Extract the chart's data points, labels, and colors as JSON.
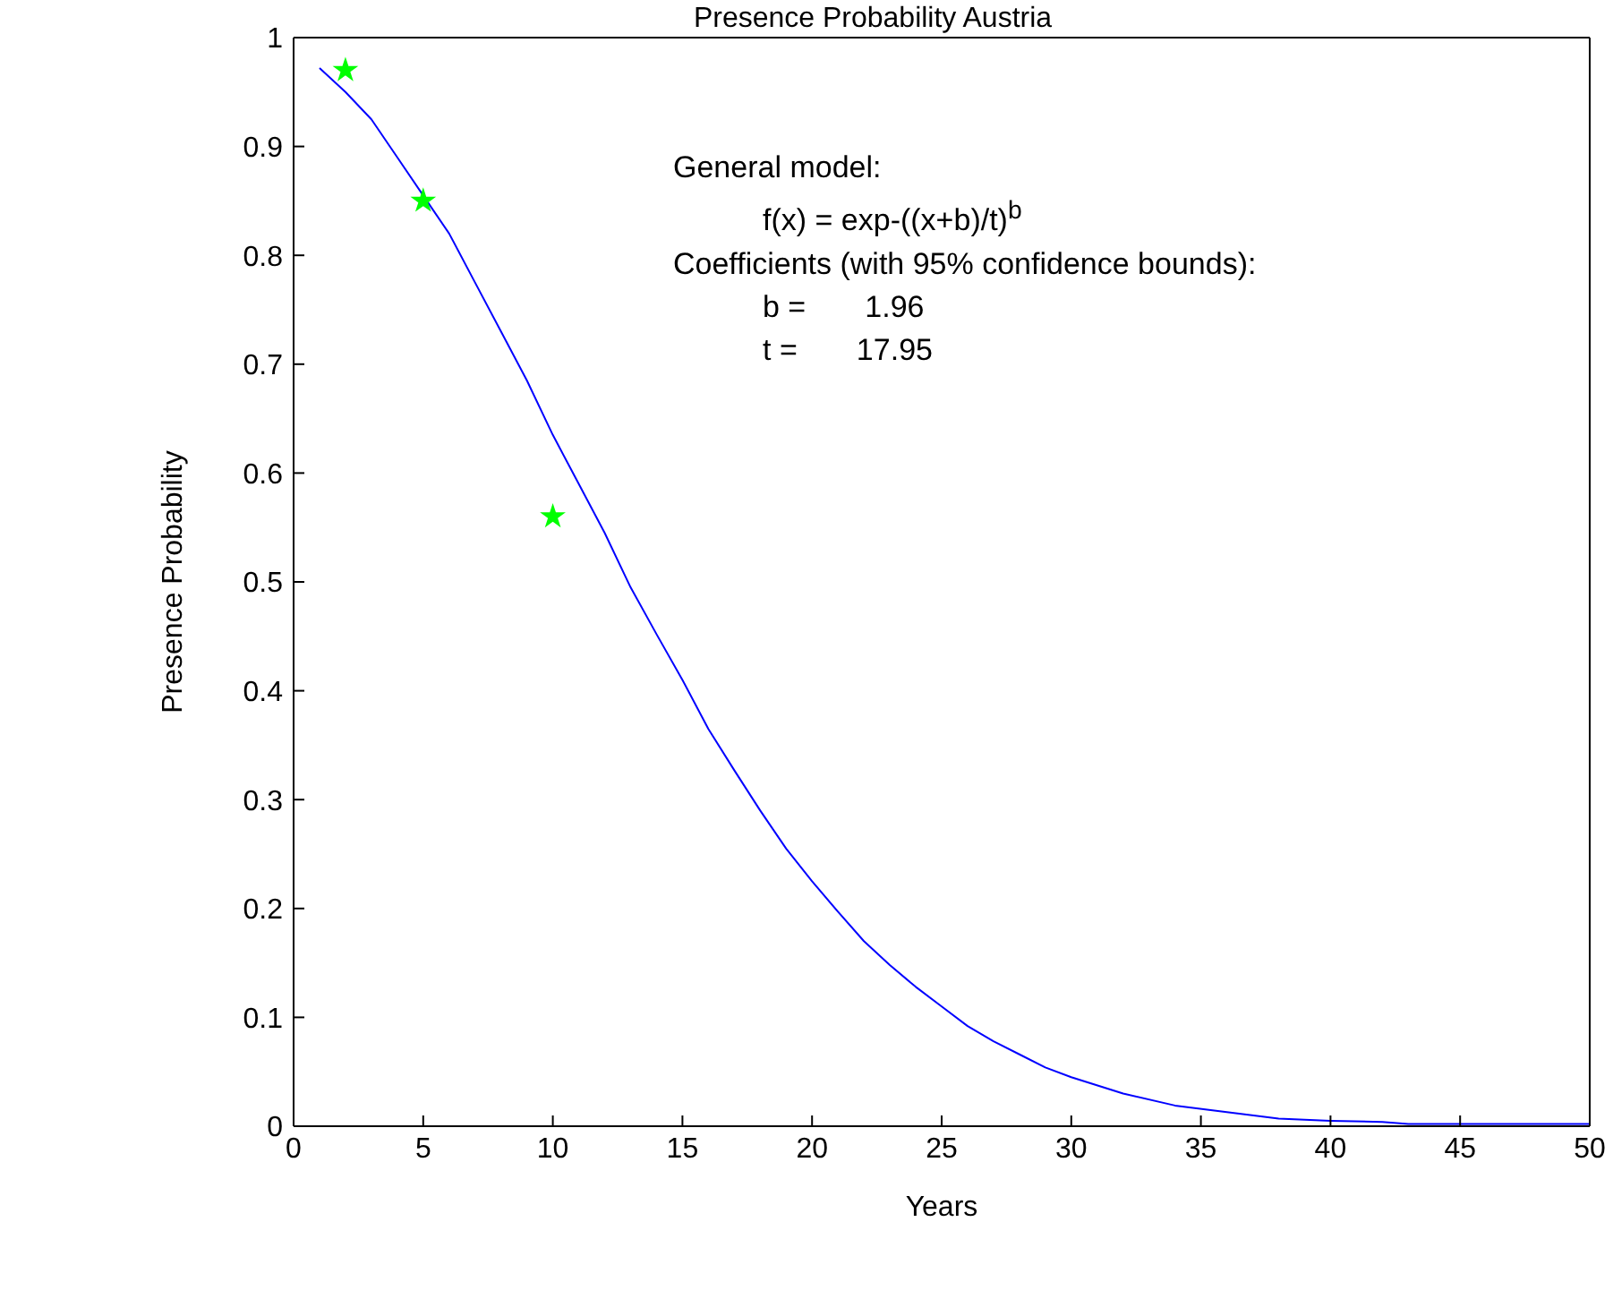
{
  "chart_data": {
    "type": "line",
    "title": "Presence Probability Austria",
    "xlabel": "Years",
    "ylabel": "Presence Probability",
    "annotations": [
      "General model:",
      "f(x) = exp-((x+b)/t)$^{b}$",
      "Coefficients (with 95% confidence bounds):",
      "b =       1.96",
      "t =       17.95"
    ],
    "series": [
      {
        "color": "#0000ff",
        "marker": "none",
        "x": [
          1,
          2,
          3,
          4,
          5,
          6,
          7,
          8,
          9,
          10,
          11,
          12,
          13,
          14,
          15,
          16,
          17,
          18,
          19,
          20,
          21,
          22,
          23,
          24,
          25,
          26,
          27,
          28,
          29,
          30,
          32,
          34,
          36,
          38,
          40,
          42,
          43,
          45,
          50
        ],
        "values": [
          0.972,
          0.95,
          0.925,
          0.89,
          0.855,
          0.82,
          0.775,
          0.73,
          0.685,
          0.635,
          0.59,
          0.545,
          0.495,
          0.452,
          0.41,
          0.365,
          0.327,
          0.29,
          0.255,
          0.225,
          0.197,
          0.17,
          0.148,
          0.128,
          0.11,
          0.092,
          0.078,
          0.066,
          0.054,
          0.045,
          0.03,
          0.019,
          0.013,
          0.007,
          0.005,
          0.004,
          0.002,
          0.002,
          0.002
        ]
      },
      {
        "type": "scatter",
        "color": "#00ff00",
        "marker": "star",
        "x": [
          2,
          5,
          10
        ],
        "values": [
          0.97,
          0.85,
          0.56
        ]
      }
    ],
    "xlim": [
      0,
      50
    ],
    "xticks": [
      0,
      5,
      10,
      15,
      20,
      25,
      30,
      35,
      40,
      45,
      50
    ],
    "ylim": [
      0,
      1
    ],
    "yticks": [
      0,
      0.1,
      0.2,
      0.3,
      0.4,
      0.5,
      0.6,
      0.7,
      0.8,
      0.9,
      1
    ]
  }
}
